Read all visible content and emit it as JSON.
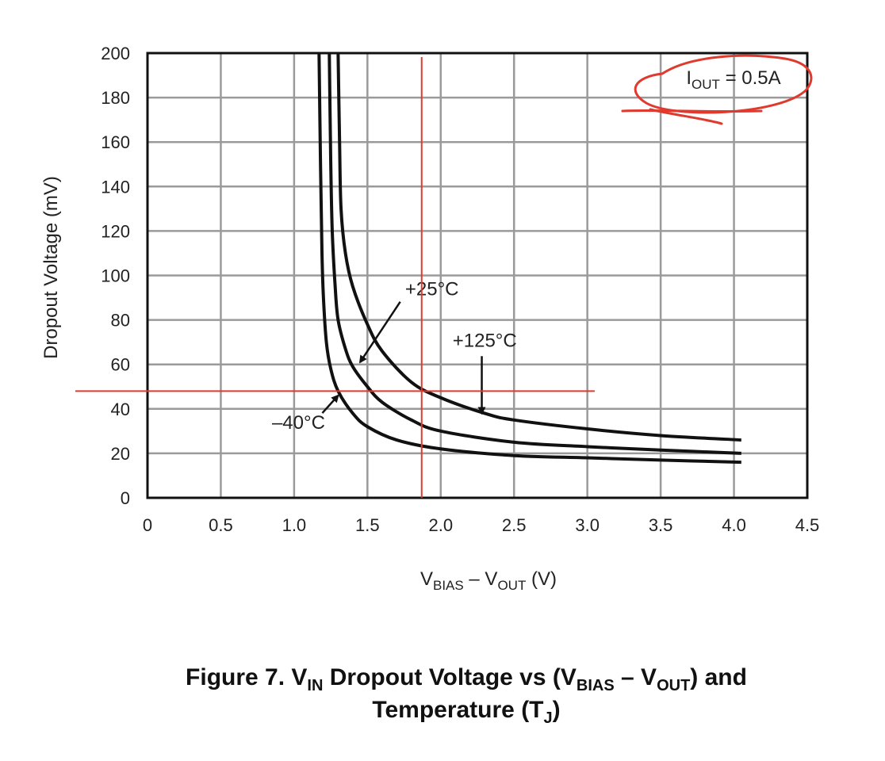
{
  "chart_data": {
    "type": "line",
    "title": "",
    "condition": "IOUT = 0.5A",
    "condition_parts": {
      "main": "I",
      "sub": "OUT",
      "rest": " = 0.5A"
    },
    "xlabel": "VBIAS – VOUT (V)",
    "xlabel_parts": [
      {
        "t": "V"
      },
      {
        "t": "BIAS",
        "sub": true
      },
      {
        "t": " – V"
      },
      {
        "t": "OUT",
        "sub": true
      },
      {
        "t": " (V)"
      }
    ],
    "ylabel": "Dropout Voltage (mV)",
    "xlim": [
      0,
      4.5
    ],
    "ylim": [
      0,
      200
    ],
    "x_ticks": [
      "0",
      "0.5",
      "1.0",
      "1.5",
      "2.0",
      "2.5",
      "3.0",
      "3.5",
      "4.0",
      "4.5"
    ],
    "x_tick_values": [
      0,
      0.5,
      1.0,
      1.5,
      2.0,
      2.5,
      3.0,
      3.5,
      4.0,
      4.5
    ],
    "y_ticks": [
      "0",
      "20",
      "40",
      "60",
      "80",
      "100",
      "120",
      "140",
      "160",
      "180",
      "200"
    ],
    "y_tick_values": [
      0,
      20,
      40,
      60,
      80,
      100,
      120,
      140,
      160,
      180,
      200
    ],
    "grid": true,
    "series": [
      {
        "name": "–40°C",
        "points": [
          [
            1.17,
            200
          ],
          [
            1.18,
            150
          ],
          [
            1.19,
            110
          ],
          [
            1.2,
            90
          ],
          [
            1.22,
            70
          ],
          [
            1.25,
            58
          ],
          [
            1.3,
            48
          ],
          [
            1.4,
            38
          ],
          [
            1.5,
            32
          ],
          [
            1.7,
            26
          ],
          [
            2.0,
            22
          ],
          [
            2.5,
            19
          ],
          [
            3.0,
            18
          ],
          [
            3.5,
            17
          ],
          [
            4.05,
            16
          ]
        ]
      },
      {
        "name": "+25°C",
        "points": [
          [
            1.24,
            200
          ],
          [
            1.25,
            150
          ],
          [
            1.26,
            120
          ],
          [
            1.28,
            95
          ],
          [
            1.3,
            80
          ],
          [
            1.35,
            67
          ],
          [
            1.4,
            59
          ],
          [
            1.5,
            50
          ],
          [
            1.6,
            43
          ],
          [
            1.8,
            35
          ],
          [
            2.0,
            30
          ],
          [
            2.5,
            25
          ],
          [
            3.0,
            23
          ],
          [
            3.5,
            21.5
          ],
          [
            4.05,
            20
          ]
        ]
      },
      {
        "name": "+125°C",
        "points": [
          [
            1.3,
            200
          ],
          [
            1.31,
            160
          ],
          [
            1.32,
            130
          ],
          [
            1.35,
            110
          ],
          [
            1.4,
            95
          ],
          [
            1.5,
            78
          ],
          [
            1.6,
            66
          ],
          [
            1.8,
            52
          ],
          [
            2.0,
            45
          ],
          [
            2.3,
            38
          ],
          [
            2.5,
            35
          ],
          [
            3.0,
            31
          ],
          [
            3.5,
            28
          ],
          [
            4.05,
            26
          ]
        ]
      }
    ],
    "annotations": [
      {
        "text": "+25°C",
        "label_x": 1.94,
        "label_y": 91,
        "arrow_to": [
          1.45,
          61
        ]
      },
      {
        "text": "+125°C",
        "label_x": 2.3,
        "label_y": 68,
        "arrow_to": [
          2.28,
          38
        ]
      },
      {
        "text": "–40°C",
        "label_x": 1.03,
        "label_y": 31,
        "arrow_to": [
          1.3,
          46
        ]
      }
    ],
    "markup": {
      "color": "#e03a2f",
      "crosshair_x": 1.87,
      "crosshair_y": 48
    }
  },
  "caption": {
    "line1_parts": [
      {
        "t": "Figure 7. V"
      },
      {
        "t": "IN",
        "sub": true
      },
      {
        "t": " Dropout Voltage vs (V"
      },
      {
        "t": "BIAS",
        "sub": true
      },
      {
        "t": " – V"
      },
      {
        "t": "OUT",
        "sub": true
      },
      {
        "t": ") and"
      }
    ],
    "line2_parts": [
      {
        "t": "Temperature (T"
      },
      {
        "t": "J",
        "sub": true
      },
      {
        "t": ")"
      }
    ],
    "text": "Figure 7. VIN Dropout Voltage vs (VBIAS – VOUT) and Temperature (TJ)"
  }
}
